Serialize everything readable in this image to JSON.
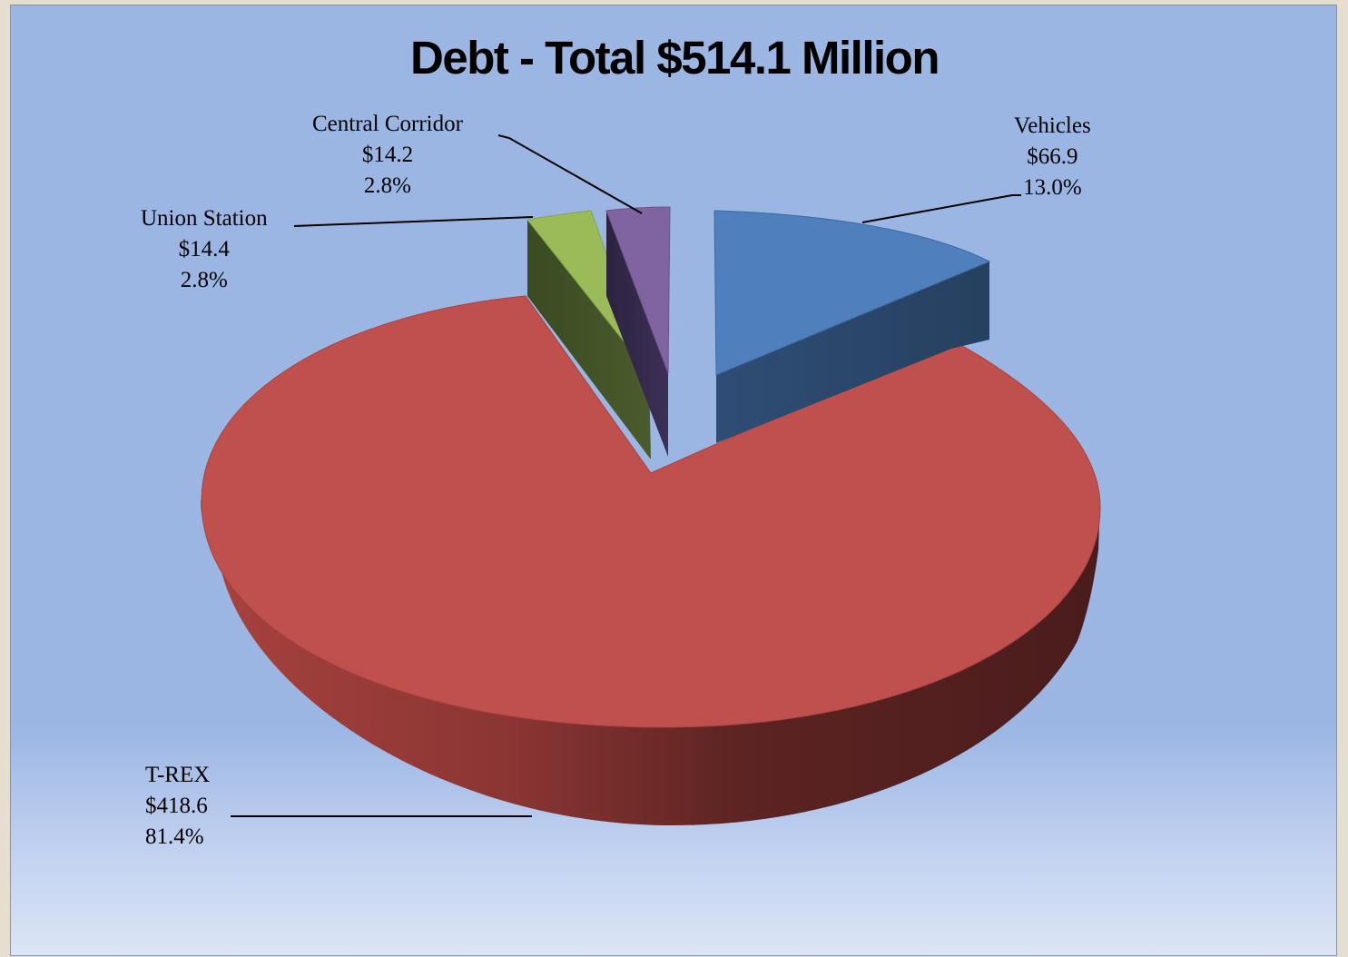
{
  "chart_data": {
    "type": "pie",
    "title": "Debt - Total $514.1 Million",
    "slices": [
      {
        "name": "Vehicles",
        "value": "$66.9",
        "percent": "13.0%",
        "amount": 66.9,
        "color": "#4f7fbc",
        "side_color": "#2d4a72"
      },
      {
        "name": "T-REX",
        "value": "$418.6",
        "percent": "81.4%",
        "amount": 418.6,
        "color": "#c0504d",
        "side_color": "#7a2d2b"
      },
      {
        "name": "Union Station",
        "value": "$14.4",
        "percent": "2.8%",
        "amount": 14.4,
        "color": "#9bbb59",
        "side_color": "#3f4d22"
      },
      {
        "name": "Central Corridor",
        "value": "$14.2",
        "percent": "2.8%",
        "amount": 14.2,
        "color": "#8064a2",
        "side_color": "#36284a"
      }
    ]
  }
}
